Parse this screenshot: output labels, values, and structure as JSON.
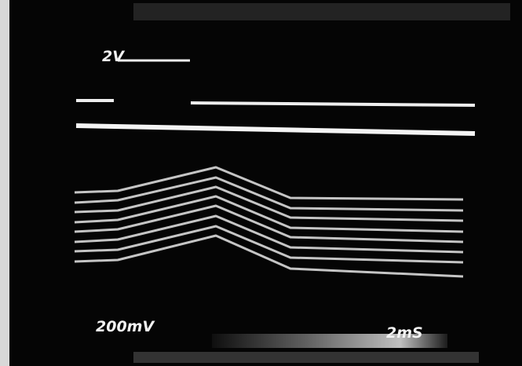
{
  "labels": {
    "top_scale": "2V",
    "bottom_scale": "200mV",
    "time_scale": "2mS"
  }
}
